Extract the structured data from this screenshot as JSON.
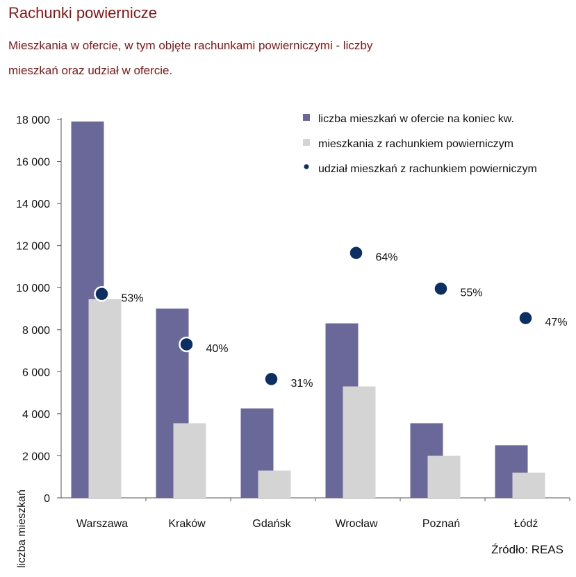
{
  "chart_data": {
    "type": "bar",
    "title": "Rachunki powiernicze",
    "subtitle": "Mieszkania w ofercie, w tym objęte rachunkami powierniczymi - liczby mieszkań oraz udział w ofercie.",
    "ylabel": "liczba mieszkań",
    "source": "Źródło: REAS",
    "ylim": [
      0,
      18000
    ],
    "yticks": [
      0,
      2000,
      4000,
      6000,
      8000,
      10000,
      12000,
      14000,
      16000,
      18000
    ],
    "ytick_labels": [
      "0",
      "2 000",
      "4 000",
      "6 000",
      "8 000",
      "10 000",
      "12 000",
      "14 000",
      "16 000",
      "18 000"
    ],
    "categories": [
      "Warszawa",
      "Kraków",
      "Gdańsk",
      "Wrocław",
      "Poznań",
      "Łódź"
    ],
    "series": [
      {
        "name": "liczba mieszkań w ofercie na koniec kw.",
        "values": [
          17900,
          9000,
          4250,
          8300,
          3550,
          2500
        ],
        "color": "#6a6898"
      },
      {
        "name": "mieszkania z rachunkiem powierniczym",
        "values": [
          9450,
          3550,
          1300,
          5300,
          2000,
          1200
        ],
        "color": "#d4d4d4"
      }
    ],
    "share": {
      "name": "udział mieszkań z rachunkiem powierniczym",
      "labels": [
        "53%",
        "40%",
        "31%",
        "64%",
        "55%",
        "47%"
      ],
      "marker_level": [
        9700,
        7300,
        5650,
        11650,
        9950,
        8550
      ],
      "color": "#0b2f63"
    },
    "legend_position": "top-right",
    "grid": false
  }
}
